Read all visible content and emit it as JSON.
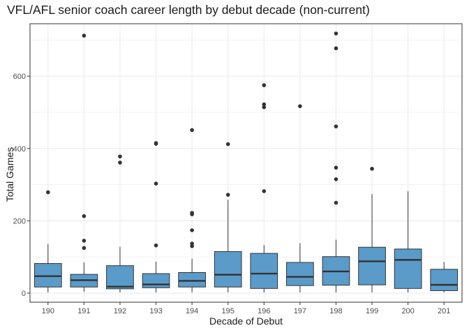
{
  "chart_data": {
    "type": "boxplot",
    "title": "VFL/AFL senior coach career length by debut decade (non-current)",
    "xlabel": "Decade of Debut",
    "ylabel": "Total Games",
    "categories": [
      "190",
      "191",
      "192",
      "193",
      "194",
      "195",
      "196",
      "197",
      "198",
      "199",
      "200",
      "201"
    ],
    "ylim": [
      -25,
      745
    ],
    "yticks": [
      0,
      200,
      400,
      600
    ],
    "grid": true,
    "legend": "none",
    "fill_color": "#5b9bc9",
    "boxes": [
      {
        "category": "190",
        "min": 2,
        "q1": 17,
        "median": 47,
        "q3": 82,
        "max": 136,
        "outliers": [
          279
        ]
      },
      {
        "category": "191",
        "min": 4,
        "q1": 17,
        "median": 36,
        "q3": 52,
        "max": 85,
        "outliers": [
          125,
          145,
          213,
          712
        ]
      },
      {
        "category": "192",
        "min": 2,
        "q1": 12,
        "median": 18,
        "q3": 76,
        "max": 128,
        "outliers": [
          361,
          378
        ]
      },
      {
        "category": "193",
        "min": 2,
        "q1": 15,
        "median": 24,
        "q3": 54,
        "max": 87,
        "outliers": [
          132,
          303,
          413,
          415
        ]
      },
      {
        "category": "194",
        "min": 2,
        "q1": 17,
        "median": 34,
        "q3": 57,
        "max": 95,
        "outliers": [
          130,
          137,
          174,
          218,
          222,
          451
        ]
      },
      {
        "category": "195",
        "min": 2,
        "q1": 17,
        "median": 51,
        "q3": 115,
        "max": 258,
        "outliers": [
          272,
          412
        ]
      },
      {
        "category": "196",
        "min": 2,
        "q1": 13,
        "median": 54,
        "q3": 110,
        "max": 133,
        "outliers": [
          282,
          514,
          522,
          575
        ]
      },
      {
        "category": "197",
        "min": 2,
        "q1": 21,
        "median": 45,
        "q3": 85,
        "max": 138,
        "outliers": [
          517
        ]
      },
      {
        "category": "198",
        "min": 2,
        "q1": 22,
        "median": 60,
        "q3": 101,
        "max": 148,
        "outliers": [
          250,
          315,
          347,
          461,
          677,
          718
        ]
      },
      {
        "category": "199",
        "min": 2,
        "q1": 23,
        "median": 88,
        "q3": 127,
        "max": 274,
        "outliers": [
          344
        ]
      },
      {
        "category": "200",
        "min": 2,
        "q1": 13,
        "median": 92,
        "q3": 122,
        "max": 282,
        "outliers": []
      },
      {
        "category": "201",
        "min": 2,
        "q1": 7,
        "median": 23,
        "q3": 66,
        "max": 86,
        "outliers": []
      }
    ]
  }
}
